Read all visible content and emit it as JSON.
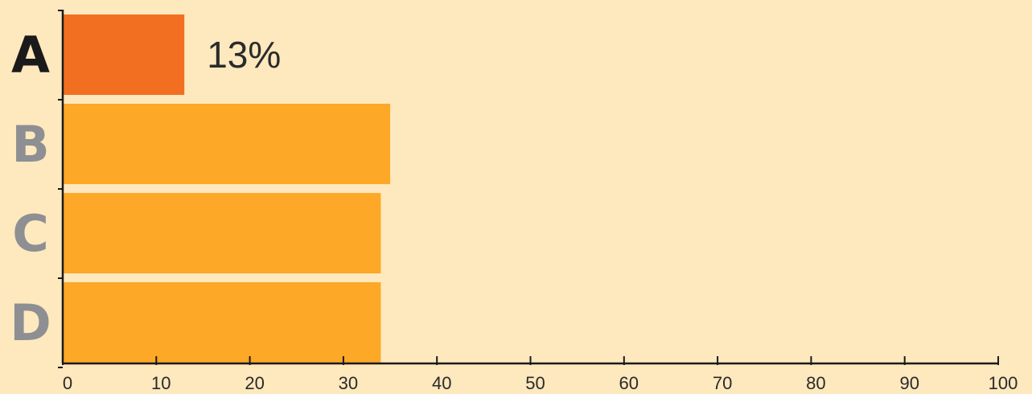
{
  "chart_data": {
    "type": "bar",
    "orientation": "horizontal",
    "categories": [
      "A",
      "B",
      "C",
      "D"
    ],
    "values": [
      13,
      35,
      34,
      34
    ],
    "highlight_category": "A",
    "data_labels": {
      "A": "13%"
    },
    "x_ticks": [
      "0",
      "10",
      "20",
      "30",
      "40",
      "50",
      "60",
      "70",
      "80",
      "90",
      "100"
    ],
    "xlim": [
      0,
      100
    ],
    "grid": false,
    "colors": {
      "background": "#FEE8BE",
      "highlight_bar": "#F26F21",
      "bar": "#FDA826",
      "highlight_label": "#1A1A1A",
      "label": "#8D8F92",
      "axis": "#1A1A1A"
    }
  }
}
